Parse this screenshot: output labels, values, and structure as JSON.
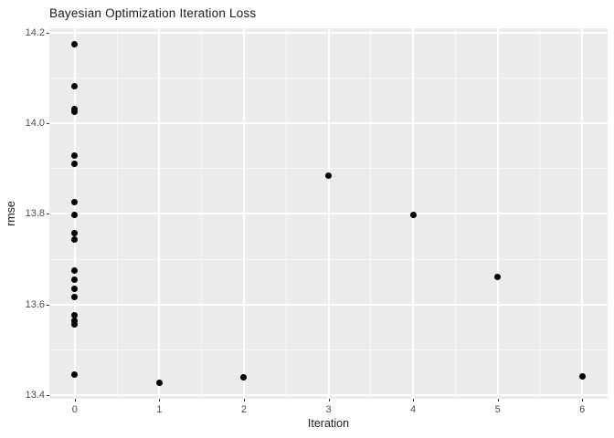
{
  "title": "Bayesian Optimization Iteration Loss",
  "x_axis_title": "Iteration",
  "y_axis_title": "rmse",
  "chart_data": {
    "type": "scatter",
    "title": "Bayesian Optimization Iteration Loss",
    "xlabel": "Iteration",
    "ylabel": "rmse",
    "xlim": [
      -0.3,
      6.3
    ],
    "ylim": [
      13.392,
      14.21
    ],
    "x_ticks": [
      0,
      1,
      2,
      3,
      4,
      5,
      6
    ],
    "y_ticks": [
      13.4,
      13.6,
      13.8,
      14.0,
      14.2
    ],
    "x_minor_gridlines": [
      0.5,
      1.5,
      2.5,
      3.5,
      4.5,
      5.5
    ],
    "y_minor_gridlines": [
      13.5,
      13.7,
      13.9,
      14.1
    ],
    "grid": true,
    "legend_position": "none",
    "panel_background_color": "#EBEBEB",
    "gridline_color": "#FFFFFF",
    "point_color": "#000000",
    "points": [
      {
        "x": 0,
        "y": 14.174
      },
      {
        "x": 0,
        "y": 14.083
      },
      {
        "x": 0,
        "y": 14.032
      },
      {
        "x": 0,
        "y": 14.026
      },
      {
        "x": 0,
        "y": 13.928
      },
      {
        "x": 0,
        "y": 13.911
      },
      {
        "x": 0,
        "y": 13.826
      },
      {
        "x": 0,
        "y": 13.797
      },
      {
        "x": 0,
        "y": 13.757
      },
      {
        "x": 0,
        "y": 13.744
      },
      {
        "x": 0,
        "y": 13.676
      },
      {
        "x": 0,
        "y": 13.655
      },
      {
        "x": 0,
        "y": 13.635
      },
      {
        "x": 0,
        "y": 13.617
      },
      {
        "x": 0,
        "y": 13.576
      },
      {
        "x": 0,
        "y": 13.565
      },
      {
        "x": 0,
        "y": 13.556
      },
      {
        "x": 0,
        "y": 13.446
      },
      {
        "x": 1,
        "y": 13.428
      },
      {
        "x": 2,
        "y": 13.44
      },
      {
        "x": 3,
        "y": 13.884
      },
      {
        "x": 4,
        "y": 13.797
      },
      {
        "x": 5,
        "y": 13.661
      },
      {
        "x": 6,
        "y": 13.441
      }
    ]
  }
}
